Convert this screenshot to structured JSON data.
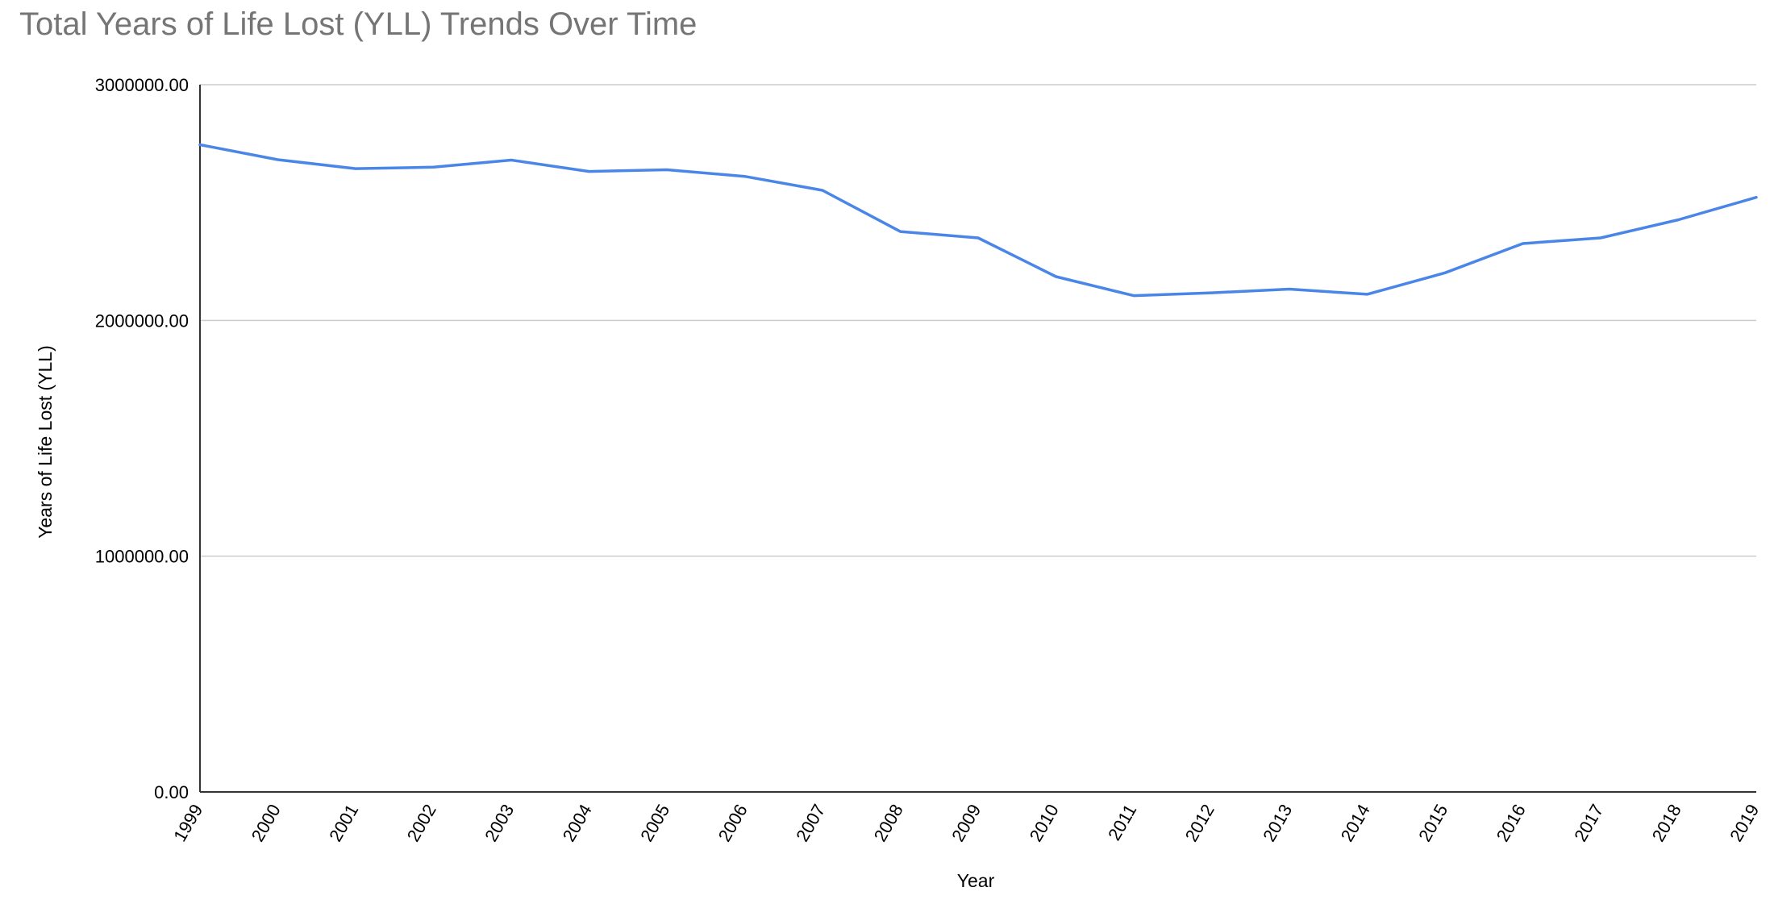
{
  "chart_data": {
    "type": "line",
    "title": "Total Years of Life Lost (YLL) Trends Over Time",
    "xlabel": "Year",
    "ylabel": "Years of Life Lost (YLL)",
    "ylim": [
      0,
      3000000
    ],
    "y_ticks": [
      0,
      1000000,
      2000000,
      3000000
    ],
    "y_tick_labels": [
      "0.00",
      "1000000.00",
      "2000000.00",
      "3000000.00"
    ],
    "grid": true,
    "legend": "none",
    "line_color": "#4a86e8",
    "categories": [
      "1999",
      "2000",
      "2001",
      "2002",
      "2003",
      "2004",
      "2005",
      "2006",
      "2007",
      "2008",
      "2009",
      "2010",
      "2011",
      "2012",
      "2013",
      "2014",
      "2015",
      "2016",
      "2017",
      "2018",
      "2019"
    ],
    "values": [
      2745000,
      2682000,
      2644000,
      2650000,
      2680000,
      2632000,
      2639000,
      2611000,
      2552000,
      2377000,
      2350000,
      2186000,
      2105000,
      2117000,
      2133000,
      2111000,
      2202000,
      2326000,
      2350000,
      2427000,
      2522000
    ]
  }
}
